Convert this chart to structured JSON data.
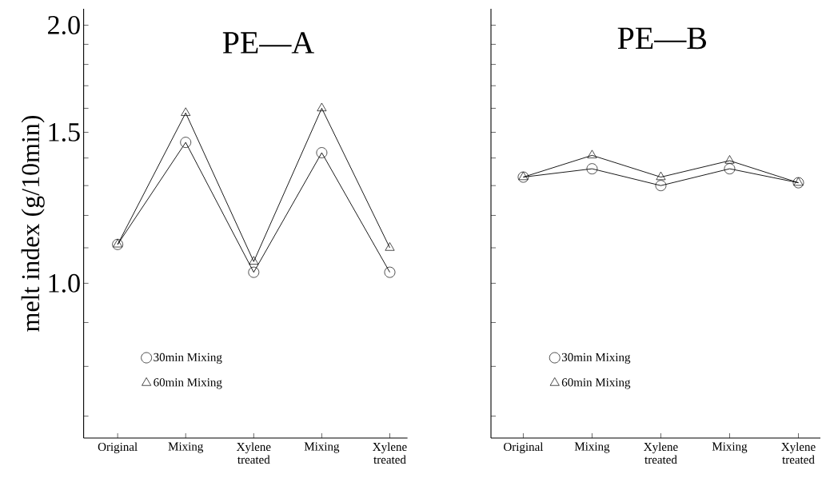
{
  "chart_data": [
    {
      "type": "line",
      "title": "PE—A",
      "ylabel": "melt index (g/10min)",
      "log": true,
      "legend": "bottom left",
      "categories": [
        "Original",
        "Mixing",
        "Xylene treated",
        "Mixing",
        "Xylene treated"
      ],
      "ylim": [
        0.66,
        2.09
      ],
      "yticks": [
        {
          "value": 2.0,
          "label": "2.0"
        },
        {
          "value": 1.9,
          "label": null
        },
        {
          "value": 1.8,
          "label": null
        },
        {
          "value": 1.7,
          "label": null
        },
        {
          "value": 1.6,
          "label": null
        },
        {
          "value": 1.5,
          "label": "1.5"
        },
        {
          "value": 1.4,
          "label": null
        },
        {
          "value": 1.3,
          "label": null
        },
        {
          "value": 1.2,
          "label": null
        },
        {
          "value": 1.1,
          "label": null
        },
        {
          "value": 1.0,
          "label": "1.0"
        },
        {
          "value": 0.9,
          "label": null
        },
        {
          "value": 0.8,
          "label": null
        },
        {
          "value": 0.7,
          "label": null
        }
      ],
      "series": [
        {
          "name": "30min Mixing",
          "color": "#000000",
          "marker": "circle",
          "values": [
            1.11,
            1.46,
            1.03,
            1.42,
            1.03
          ]
        },
        {
          "name": "60min Mixing",
          "color": "#000000",
          "marker": "triangle",
          "values": [
            1.11,
            1.58,
            1.06,
            1.6,
            1.1
          ]
        }
      ]
    },
    {
      "type": "line",
      "title": "PE—B",
      "log": true,
      "legend": "bottom left",
      "tick_labels": "x",
      "categories": [
        "Original",
        "Mixing",
        "Xylene treated",
        "Mixing",
        "Xylene treated"
      ],
      "ylim": [
        0.66,
        2.09
      ],
      "yticks": [
        {
          "value": 2.0,
          "label": null
        },
        {
          "value": 1.9,
          "label": null
        },
        {
          "value": 1.8,
          "label": null
        },
        {
          "value": 1.7,
          "label": null
        },
        {
          "value": 1.6,
          "label": null
        },
        {
          "value": 1.5,
          "label": null
        },
        {
          "value": 1.4,
          "label": null
        },
        {
          "value": 1.3,
          "label": null
        },
        {
          "value": 1.2,
          "label": null
        },
        {
          "value": 1.1,
          "label": null
        },
        {
          "value": 1.0,
          "label": null
        },
        {
          "value": 0.9,
          "label": null
        },
        {
          "value": 0.8,
          "label": null
        },
        {
          "value": 0.7,
          "label": null
        }
      ],
      "series": [
        {
          "name": "30min Mixing",
          "color": "#000000",
          "marker": "circle",
          "values": [
            1.33,
            1.36,
            1.3,
            1.36,
            1.31
          ]
        },
        {
          "name": "60min Mixing",
          "color": "#000000",
          "marker": "triangle",
          "values": [
            1.33,
            1.41,
            1.33,
            1.39,
            1.31
          ]
        }
      ]
    }
  ]
}
